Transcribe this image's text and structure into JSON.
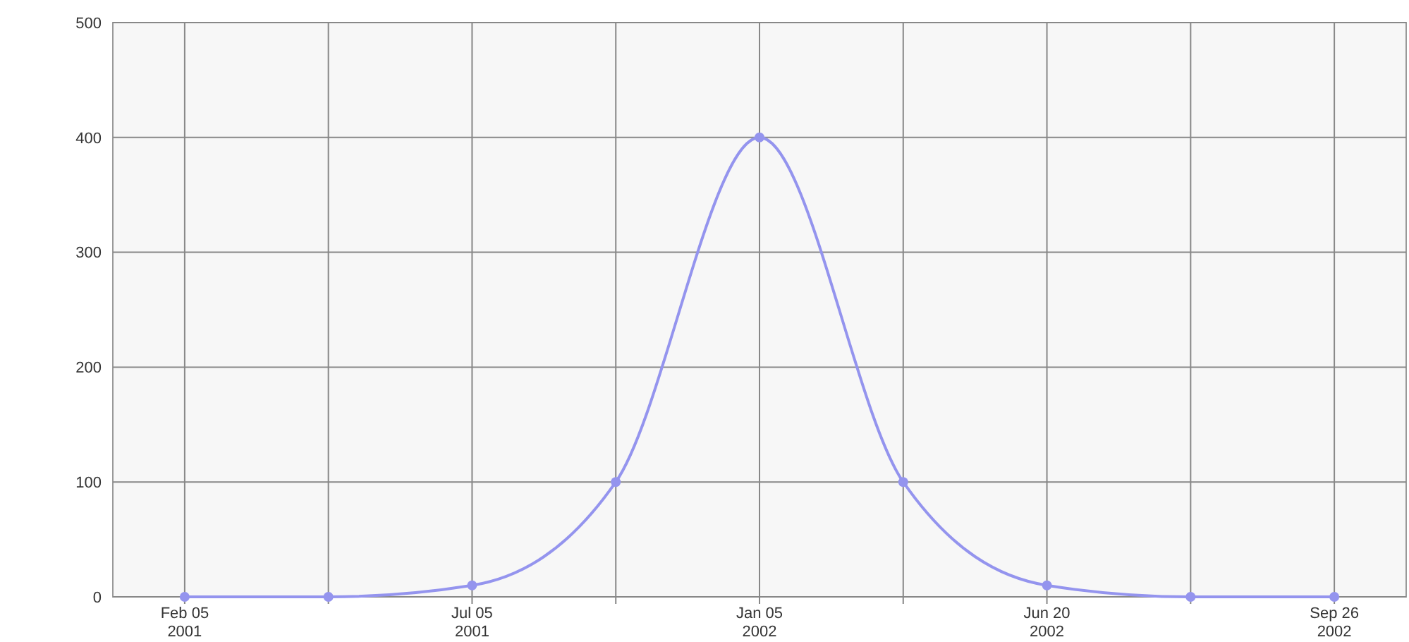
{
  "chart_data": {
    "type": "line",
    "categories": [
      "Feb 05\n2001",
      null,
      "Jul 05\n2001",
      null,
      "Jan 05\n2002",
      null,
      "Jun 20\n2002",
      null,
      "Sep 26\n2002"
    ],
    "series": [
      {
        "color": "#9494ee",
        "values": [
          0,
          0,
          10,
          100,
          400,
          100,
          10,
          0,
          0
        ]
      }
    ],
    "ylim": [
      0,
      500
    ],
    "yticks": [
      0,
      100,
      200,
      300,
      400,
      500
    ],
    "grid": true,
    "marker": "circle",
    "line_style": "solid"
  }
}
